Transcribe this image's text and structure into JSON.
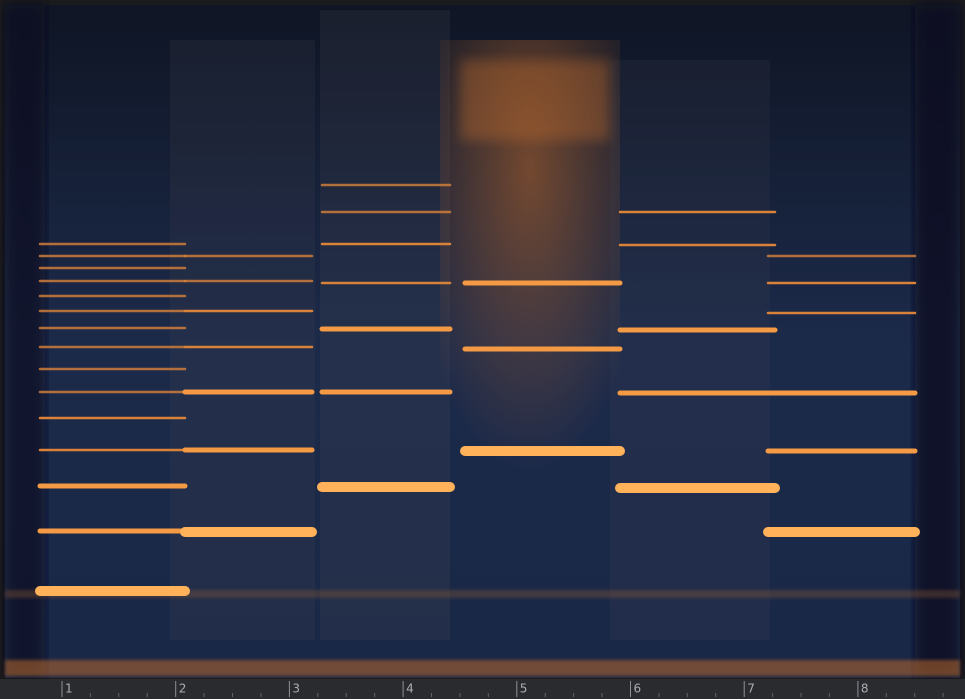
{
  "ruler": {
    "labels": [
      "1",
      "2",
      "3",
      "4",
      "5",
      "6",
      "7",
      "8"
    ]
  }
}
